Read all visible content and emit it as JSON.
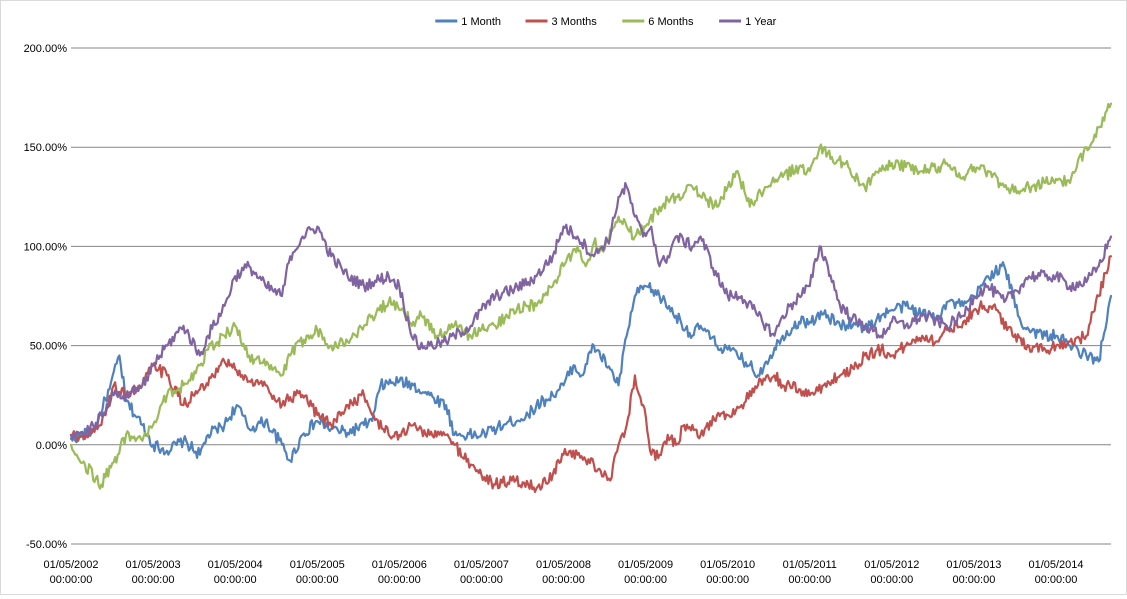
{
  "chart_data": {
    "type": "line",
    "title": "",
    "xlabel": "",
    "ylabel": "",
    "ylim": [
      -0.5,
      2.0
    ],
    "y_ticks": [
      -0.5,
      0.0,
      0.5,
      1.0,
      1.5,
      2.0
    ],
    "y_tick_labels": [
      "-50.00%",
      "0.00%",
      "50.00%",
      "100.00%",
      "150.00%",
      "200.00%"
    ],
    "grid": "horizontal",
    "legend_position": "top",
    "x_range_years": [
      2002.33,
      2015.0
    ],
    "x_ticks": [
      2002.33,
      2003.33,
      2004.33,
      2005.33,
      2006.33,
      2007.33,
      2008.33,
      2009.33,
      2010.33,
      2011.33,
      2012.33,
      2013.33,
      2014.33
    ],
    "x_tick_labels": [
      [
        "01/05/2002",
        "00:00:00"
      ],
      [
        "01/05/2003",
        "00:00:00"
      ],
      [
        "01/05/2004",
        "00:00:00"
      ],
      [
        "01/05/2005",
        "00:00:00"
      ],
      [
        "01/05/2006",
        "00:00:00"
      ],
      [
        "01/05/2007",
        "00:00:00"
      ],
      [
        "01/05/2008",
        "00:00:00"
      ],
      [
        "01/05/2009",
        "00:00:00"
      ],
      [
        "01/05/2010",
        "00:00:00"
      ],
      [
        "01/05/2011",
        "00:00:00"
      ],
      [
        "01/05/2012",
        "00:00:00"
      ],
      [
        "01/05/2013",
        "00:00:00"
      ],
      [
        "01/05/2014",
        "00:00:00"
      ]
    ],
    "series": [
      {
        "name": "1 Month",
        "color": "#4F81BD",
        "x": [
          2002.33,
          2002.6,
          2002.8,
          2002.92,
          2003.0,
          2003.2,
          2003.33,
          2003.5,
          2003.7,
          2003.9,
          2004.0,
          2004.2,
          2004.35,
          2004.5,
          2004.7,
          2004.9,
          2005.0,
          2005.15,
          2005.33,
          2005.5,
          2005.7,
          2005.9,
          2006.0,
          2006.1,
          2006.33,
          2006.5,
          2006.7,
          2006.9,
          2007.0,
          2007.33,
          2007.6,
          2007.9,
          2008.0,
          2008.2,
          2008.33,
          2008.45,
          2008.55,
          2008.7,
          2008.9,
          2009.0,
          2009.1,
          2009.2,
          2009.33,
          2009.5,
          2009.7,
          2009.9,
          2010.0,
          2010.2,
          2010.33,
          2010.45,
          2010.6,
          2010.7,
          2010.8,
          2011.0,
          2011.2,
          2011.33,
          2011.5,
          2011.7,
          2011.9,
          2012.0,
          2012.2,
          2012.33,
          2012.5,
          2012.7,
          2012.9,
          2013.0,
          2013.2,
          2013.33,
          2013.5,
          2013.7,
          2013.9,
          2014.0,
          2014.2,
          2014.33,
          2014.5,
          2014.7,
          2014.85,
          2015.0
        ],
        "values": [
          0.03,
          0.07,
          0.28,
          0.45,
          0.22,
          0.1,
          0.0,
          -0.03,
          0.02,
          -0.05,
          0.05,
          0.1,
          0.2,
          0.08,
          0.12,
          0.0,
          -0.08,
          0.05,
          0.12,
          0.08,
          0.06,
          0.1,
          0.12,
          0.3,
          0.32,
          0.3,
          0.25,
          0.2,
          0.05,
          0.05,
          0.1,
          0.15,
          0.2,
          0.25,
          0.3,
          0.4,
          0.35,
          0.5,
          0.38,
          0.3,
          0.55,
          0.75,
          0.8,
          0.75,
          0.65,
          0.55,
          0.6,
          0.5,
          0.48,
          0.45,
          0.4,
          0.35,
          0.42,
          0.55,
          0.62,
          0.62,
          0.66,
          0.6,
          0.62,
          0.58,
          0.65,
          0.68,
          0.7,
          0.66,
          0.65,
          0.72,
          0.7,
          0.74,
          0.85,
          0.9,
          0.62,
          0.58,
          0.55,
          0.55,
          0.5,
          0.45,
          0.42,
          0.75
        ]
      },
      {
        "name": "3 Months",
        "color": "#C0504D",
        "x": [
          2002.33,
          2002.5,
          2002.7,
          2002.85,
          2003.0,
          2003.2,
          2003.33,
          2003.5,
          2003.7,
          2003.9,
          2004.0,
          2004.2,
          2004.33,
          2004.5,
          2004.7,
          2004.9,
          2005.0,
          2005.15,
          2005.33,
          2005.5,
          2005.7,
          2005.9,
          2006.0,
          2006.2,
          2006.33,
          2006.5,
          2006.7,
          2006.9,
          2007.0,
          2007.2,
          2007.33,
          2007.5,
          2007.7,
          2007.9,
          2008.0,
          2008.2,
          2008.33,
          2008.5,
          2008.7,
          2008.9,
          2009.0,
          2009.1,
          2009.2,
          2009.3,
          2009.4,
          2009.5,
          2009.6,
          2009.7,
          2009.8,
          2009.9,
          2010.0,
          2010.2,
          2010.33,
          2010.5,
          2010.7,
          2010.9,
          2011.0,
          2011.2,
          2011.33,
          2011.5,
          2011.7,
          2011.9,
          2012.0,
          2012.2,
          2012.33,
          2012.5,
          2012.7,
          2012.9,
          2013.0,
          2013.2,
          2013.33,
          2013.45,
          2013.6,
          2013.8,
          2014.0,
          2014.2,
          2014.33,
          2014.5,
          2014.7,
          2014.85,
          2015.0
        ],
        "values": [
          0.05,
          0.03,
          0.1,
          0.3,
          0.25,
          0.3,
          0.4,
          0.35,
          0.2,
          0.28,
          0.3,
          0.42,
          0.38,
          0.32,
          0.3,
          0.2,
          0.24,
          0.25,
          0.15,
          0.1,
          0.2,
          0.25,
          0.15,
          0.05,
          0.05,
          0.1,
          0.05,
          0.05,
          0.0,
          -0.1,
          -0.15,
          -0.2,
          -0.18,
          -0.2,
          -0.22,
          -0.15,
          -0.05,
          -0.05,
          -0.1,
          -0.18,
          0.0,
          0.1,
          0.35,
          0.2,
          -0.05,
          -0.05,
          0.05,
          0.0,
          0.1,
          0.1,
          0.05,
          0.15,
          0.15,
          0.2,
          0.3,
          0.35,
          0.3,
          0.28,
          0.25,
          0.3,
          0.35,
          0.4,
          0.45,
          0.48,
          0.45,
          0.5,
          0.55,
          0.52,
          0.58,
          0.62,
          0.68,
          0.7,
          0.68,
          0.55,
          0.5,
          0.48,
          0.5,
          0.52,
          0.55,
          0.75,
          0.95
        ]
      },
      {
        "name": "6 Months",
        "color": "#9BBB59",
        "x": [
          2002.33,
          2002.5,
          2002.7,
          2002.9,
          2003.0,
          2003.2,
          2003.33,
          2003.5,
          2003.7,
          2003.9,
          2004.0,
          2004.2,
          2004.33,
          2004.5,
          2004.7,
          2004.9,
          2005.0,
          2005.2,
          2005.33,
          2005.5,
          2005.7,
          2005.9,
          2006.0,
          2006.2,
          2006.33,
          2006.5,
          2006.6,
          2006.8,
          2007.0,
          2007.2,
          2007.33,
          2007.5,
          2007.7,
          2007.9,
          2008.0,
          2008.2,
          2008.33,
          2008.5,
          2008.6,
          2008.7,
          2008.8,
          2009.0,
          2009.1,
          2009.2,
          2009.33,
          2009.5,
          2009.7,
          2009.9,
          2010.0,
          2010.2,
          2010.33,
          2010.45,
          2010.6,
          2010.8,
          2011.0,
          2011.2,
          2011.33,
          2011.45,
          2011.6,
          2011.8,
          2012.0,
          2012.2,
          2012.33,
          2012.5,
          2012.7,
          2012.9,
          2013.0,
          2013.2,
          2013.33,
          2013.5,
          2013.7,
          2013.9,
          2014.0,
          2014.2,
          2014.33,
          2014.5,
          2014.7,
          2014.85,
          2015.0
        ],
        "values": [
          0.0,
          -0.1,
          -0.2,
          -0.05,
          0.05,
          0.02,
          0.1,
          0.25,
          0.3,
          0.4,
          0.48,
          0.55,
          0.6,
          0.45,
          0.4,
          0.35,
          0.45,
          0.55,
          0.58,
          0.5,
          0.52,
          0.6,
          0.65,
          0.72,
          0.68,
          0.62,
          0.65,
          0.55,
          0.6,
          0.55,
          0.58,
          0.6,
          0.68,
          0.7,
          0.7,
          0.8,
          0.9,
          1.0,
          0.9,
          1.02,
          0.98,
          1.15,
          1.1,
          1.05,
          1.1,
          1.2,
          1.25,
          1.3,
          1.25,
          1.2,
          1.3,
          1.38,
          1.2,
          1.3,
          1.35,
          1.4,
          1.38,
          1.5,
          1.45,
          1.4,
          1.3,
          1.38,
          1.42,
          1.4,
          1.38,
          1.4,
          1.42,
          1.35,
          1.4,
          1.38,
          1.3,
          1.28,
          1.3,
          1.32,
          1.34,
          1.32,
          1.5,
          1.6,
          1.72
        ]
      },
      {
        "name": "1 Year",
        "color": "#8064A2",
        "x": [
          2002.33,
          2002.5,
          2002.7,
          2002.85,
          2003.0,
          2003.2,
          2003.33,
          2003.5,
          2003.7,
          2003.9,
          2004.0,
          2004.2,
          2004.33,
          2004.5,
          2004.7,
          2004.9,
          2005.0,
          2005.15,
          2005.33,
          2005.5,
          2005.7,
          2005.9,
          2006.0,
          2006.2,
          2006.33,
          2006.45,
          2006.55,
          2006.7,
          2006.9,
          2007.0,
          2007.2,
          2007.33,
          2007.5,
          2007.7,
          2007.9,
          2008.0,
          2008.2,
          2008.33,
          2008.5,
          2008.7,
          2008.8,
          2008.9,
          2009.0,
          2009.1,
          2009.2,
          2009.3,
          2009.4,
          2009.5,
          2009.6,
          2009.7,
          2009.9,
          2010.0,
          2010.2,
          2010.33,
          2010.5,
          2010.7,
          2010.9,
          2011.0,
          2011.2,
          2011.33,
          2011.45,
          2011.55,
          2011.7,
          2011.9,
          2012.0,
          2012.2,
          2012.33,
          2012.5,
          2012.7,
          2012.9,
          2013.0,
          2013.2,
          2013.33,
          2013.5,
          2013.7,
          2013.9,
          2014.0,
          2014.2,
          2014.33,
          2014.5,
          2014.7,
          2014.85,
          2015.0
        ],
        "values": [
          0.05,
          0.05,
          0.15,
          0.25,
          0.25,
          0.3,
          0.4,
          0.5,
          0.6,
          0.45,
          0.55,
          0.7,
          0.85,
          0.9,
          0.8,
          0.75,
          0.95,
          1.05,
          1.1,
          0.95,
          0.85,
          0.8,
          0.82,
          0.85,
          0.8,
          0.6,
          0.5,
          0.5,
          0.52,
          0.55,
          0.6,
          0.68,
          0.75,
          0.78,
          0.82,
          0.85,
          0.95,
          1.1,
          1.05,
          0.95,
          1.0,
          1.05,
          1.25,
          1.3,
          1.15,
          1.05,
          1.1,
          0.9,
          0.95,
          1.05,
          1.0,
          1.05,
          0.85,
          0.75,
          0.75,
          0.65,
          0.55,
          0.65,
          0.75,
          0.8,
          1.0,
          0.9,
          0.7,
          0.62,
          0.6,
          0.55,
          0.62,
          0.6,
          0.65,
          0.62,
          0.6,
          0.65,
          0.75,
          0.8,
          0.72,
          0.8,
          0.85,
          0.85,
          0.85,
          0.8,
          0.82,
          0.9,
          1.05
        ]
      }
    ]
  }
}
